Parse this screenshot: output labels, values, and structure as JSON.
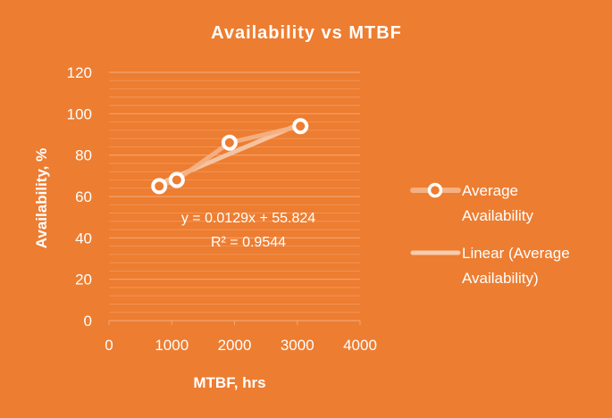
{
  "chart_data": {
    "type": "scatter",
    "title": "Availability vs MTBF",
    "xlabel": "MTBF, hrs",
    "ylabel": "Availability, %",
    "xlim": [
      0,
      4000
    ],
    "ylim": [
      0,
      120
    ],
    "xticks": [
      0,
      1000,
      2000,
      3000,
      4000
    ],
    "yticks": [
      0,
      20,
      40,
      60,
      80,
      100,
      120
    ],
    "grid": true,
    "legend_position": "right",
    "series": [
      {
        "name": "Average Availability",
        "x": [
          800,
          1080,
          1920,
          3050
        ],
        "y": [
          65,
          68,
          86,
          94
        ]
      }
    ],
    "trendline": {
      "name": "Linear (Average Availability)",
      "slope": 0.0129,
      "intercept": 55.824,
      "equation": "y = 0.0129x + 55.824",
      "r_squared": "R² = 0.9544"
    },
    "colors": {
      "background": "#ED7D31",
      "marker_edge": "#FFFFFF",
      "series_line": "#F4B183",
      "trendline": "#F8CBAD",
      "gridline": "#F4A46F"
    }
  }
}
